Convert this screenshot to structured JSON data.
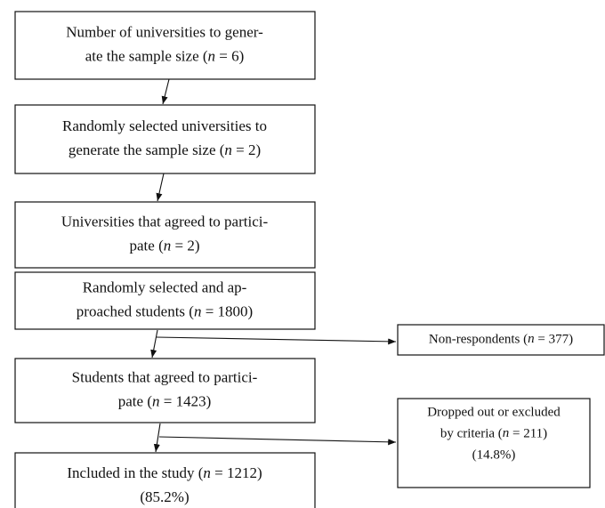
{
  "nodes": [
    {
      "lines": [
        "Number of universities to gener-",
        "ate the sample size (n = 6)"
      ]
    },
    {
      "lines": [
        "Randomly selected universities to",
        "generate the sample size (n = 2)"
      ]
    },
    {
      "lines": [
        "Universities that agreed to partici-",
        "pate (n = 2)"
      ]
    },
    {
      "lines": [
        "Randomly selected and ap-",
        "proached students (n = 1800)"
      ]
    },
    {
      "lines": [
        "Students that agreed to partici-",
        "pate (n = 1423)"
      ]
    },
    {
      "lines": [
        "Included in the study (n = 1212)",
        "(85.2%)"
      ]
    }
  ],
  "side_nodes": [
    {
      "lines": [
        "Non-respondents (n = 377)"
      ]
    },
    {
      "lines": [
        "Dropped out or excluded",
        "by criteria (n = 211)",
        "(14.8%)"
      ]
    }
  ]
}
